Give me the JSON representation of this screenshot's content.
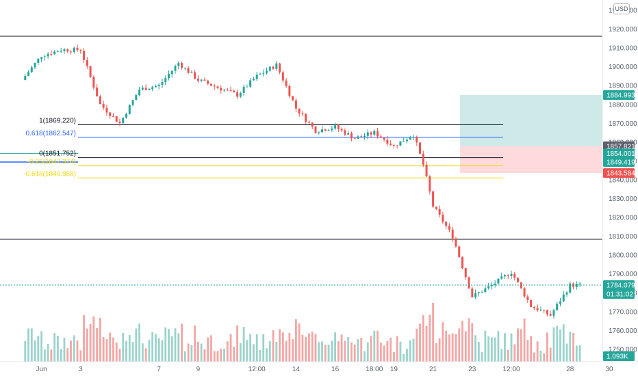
{
  "currency_button": "USD",
  "colors": {
    "up": "#26a69a",
    "down": "#ef5350",
    "vol_up": "#9ad3cc",
    "vol_down": "#f3a6a4",
    "fib_one": "#131722",
    "fib_618": "#2962ff",
    "fib_zero": "#131722",
    "fib_neg": "#f2d700",
    "hline": "#131722",
    "target_zone": "#b2dfdb",
    "stop_zone": "#ffcdd2"
  },
  "chart_data": {
    "type": "candlestick",
    "title": "",
    "xlabel": "",
    "ylabel": "",
    "ylim": [
      1748,
      1932
    ],
    "x_range_days": [
      0,
      31
    ],
    "x_tick_labels": [
      {
        "day": 1,
        "label": "Jun"
      },
      {
        "day": 3,
        "label": "3"
      },
      {
        "day": 7,
        "label": "7"
      },
      {
        "day": 9,
        "label": "9"
      },
      {
        "day": 12,
        "label": "12:00"
      },
      {
        "day": 14,
        "label": "14"
      },
      {
        "day": 16,
        "label": "16"
      },
      {
        "day": 18,
        "label": "18:00"
      },
      {
        "day": 19,
        "label": "19"
      },
      {
        "day": 21,
        "label": "21"
      },
      {
        "day": 23,
        "label": "23"
      },
      {
        "day": 25,
        "label": "12:00"
      },
      {
        "day": 28,
        "label": "28"
      },
      {
        "day": 30,
        "label": "30"
      }
    ],
    "y_tick_labels": [
      "1930.000",
      "1920.000",
      "1910.000",
      "1900.000",
      "1890.000",
      "1880.000",
      "1870.000",
      "1860.000",
      "1850.000",
      "1840.000",
      "1830.000",
      "1820.000",
      "1810.000",
      "1800.000",
      "1790.000",
      "1780.000",
      "1770.000",
      "1760.000",
      "1750.000"
    ],
    "y_tick_values": [
      1930,
      1920,
      1910,
      1900,
      1890,
      1880,
      1870,
      1860,
      1850,
      1840,
      1830,
      1820,
      1810,
      1800,
      1790,
      1780,
      1770,
      1760,
      1750
    ],
    "price_path": [
      [
        0,
        1893
      ],
      [
        1,
        1906
      ],
      [
        2,
        1909
      ],
      [
        3,
        1909
      ],
      [
        4,
        1880
      ],
      [
        5,
        1870
      ],
      [
        6,
        1888
      ],
      [
        7,
        1890
      ],
      [
        8,
        1902
      ],
      [
        9,
        1893
      ],
      [
        10,
        1889
      ],
      [
        11,
        1885
      ],
      [
        12,
        1895
      ],
      [
        13,
        1901
      ],
      [
        14,
        1878
      ],
      [
        15,
        1866
      ],
      [
        16,
        1868
      ],
      [
        17,
        1862
      ],
      [
        18,
        1865
      ],
      [
        19,
        1858
      ],
      [
        20,
        1864
      ],
      [
        20.5,
        1848
      ],
      [
        21,
        1826
      ],
      [
        22,
        1810
      ],
      [
        23,
        1778
      ],
      [
        24,
        1784
      ],
      [
        25,
        1791
      ],
      [
        26,
        1773
      ],
      [
        27,
        1768
      ],
      [
        28,
        1784
      ],
      [
        28.5,
        1784
      ]
    ],
    "horizontal_lines": [
      1916.2,
      1808.4
    ],
    "fibonacci": [
      {
        "label": "1(1869.220)",
        "value": 1869.22,
        "role": "one"
      },
      {
        "label": "0.618(1862.547)",
        "value": 1862.547,
        "role": "618"
      },
      {
        "label": "0(1851.752)",
        "value": 1851.752,
        "role": "zero"
      },
      {
        "label": "-0.25(1847.374)",
        "value": 1847.374,
        "role": "neg"
      },
      {
        "label": "-0.618(1840.958)",
        "value": 1840.958,
        "role": "neg"
      }
    ],
    "position_zones": {
      "target_top": 1884.993,
      "entry": 1857.821,
      "stop": 1843.584
    },
    "price_tags": [
      {
        "label": "1884.993",
        "value": 1884.993,
        "color": "#26a69a"
      },
      {
        "label": "1857.821",
        "value": 1857.821,
        "color": "#5d606b"
      },
      {
        "label": "1854.001",
        "value": 1854.001,
        "color": "#26a69a"
      },
      {
        "label": "1849.419",
        "value": 1849.419,
        "color": "#26a69a"
      },
      {
        "label": "1843.584",
        "value": 1843.584,
        "color": "#ef5350"
      }
    ],
    "last_price": {
      "label": "1784.079",
      "value": 1784.079,
      "countdown": "01:31:02",
      "color": "#26a69a"
    },
    "volume_tag": {
      "label": "1.093K",
      "color": "#26a69a"
    }
  }
}
